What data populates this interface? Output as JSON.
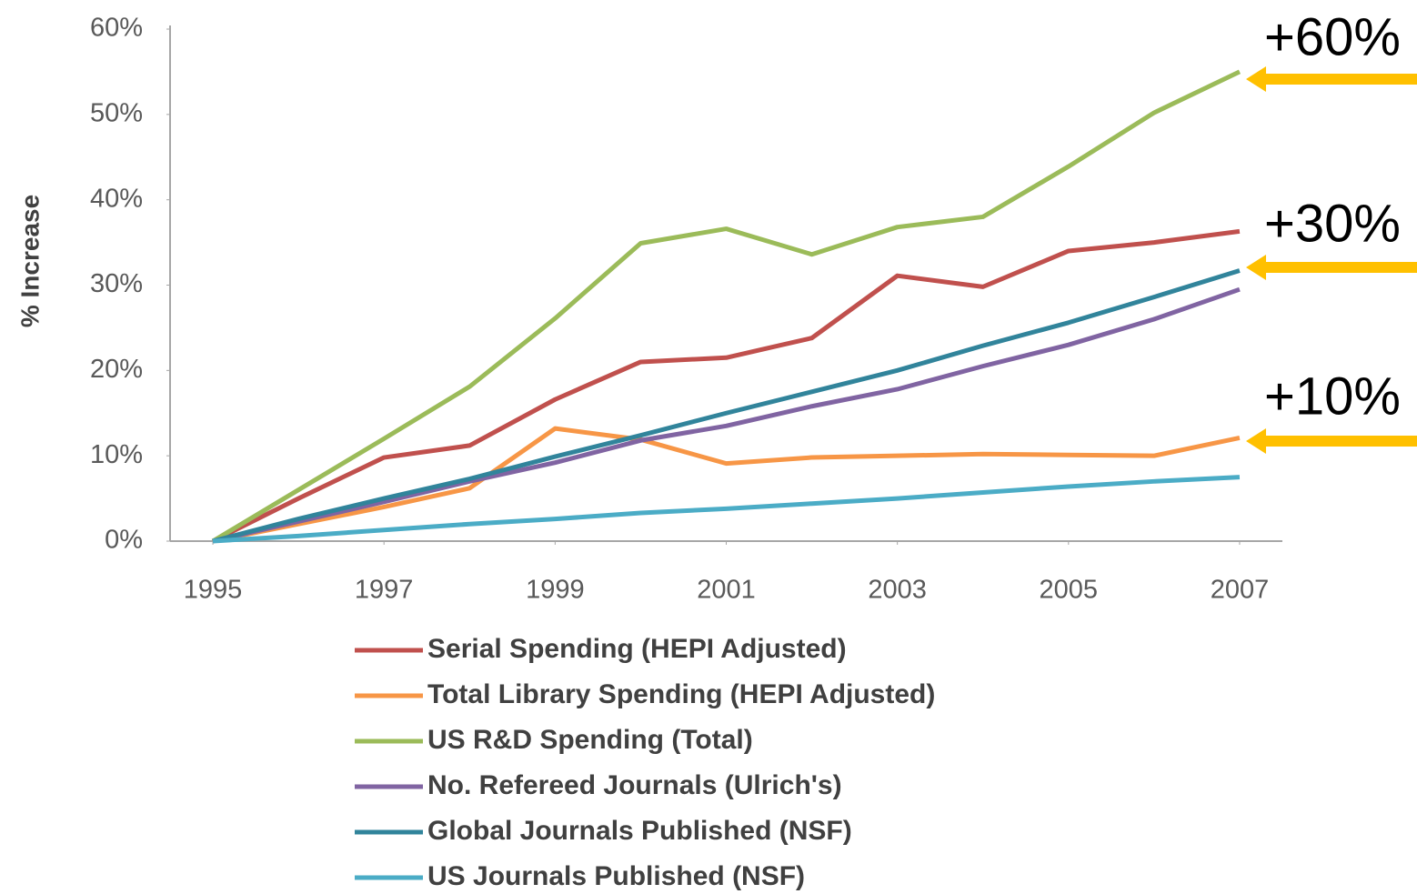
{
  "chart_data": {
    "type": "line",
    "y_label": "% Increase",
    "x": [
      1995,
      1996,
      1997,
      1998,
      1999,
      2000,
      2001,
      2002,
      2003,
      2004,
      2005,
      2006,
      2007
    ],
    "xlim": [
      1994.5,
      2007.5
    ],
    "xticks": [
      1995,
      1997,
      1999,
      2001,
      2003,
      2005,
      2007
    ],
    "ylim": [
      0,
      60
    ],
    "yticks": [
      {
        "value": 0,
        "label": "0%"
      },
      {
        "value": 10,
        "label": "10%"
      },
      {
        "value": 20,
        "label": "20%"
      },
      {
        "value": 30,
        "label": "30%"
      },
      {
        "value": 40,
        "label": "40%"
      },
      {
        "value": 50,
        "label": "50%"
      },
      {
        "value": 60,
        "label": "60%"
      }
    ],
    "grid": false,
    "legend": "bottom",
    "series": [
      {
        "name": "Serial Spending (HEPI Adjusted)",
        "color": "#c0504d",
        "values": [
          0,
          5,
          9.8,
          11.2,
          16.6,
          21,
          21.5,
          23.8,
          31.1,
          29.8,
          34,
          35,
          36.3
        ]
      },
      {
        "name": "Total Library Spending (HEPI Adjusted)",
        "color": "#f79646",
        "values": [
          0,
          2,
          4,
          6.2,
          13.2,
          11.9,
          9.1,
          9.8,
          10,
          10.2,
          10.1,
          10,
          12.1
        ]
      },
      {
        "name": "US R&D Spending (Total)",
        "color": "#9bbb59",
        "values": [
          0,
          6,
          12,
          18.1,
          26.1,
          34.9,
          36.6,
          33.6,
          36.8,
          38,
          43.9,
          50.2,
          55
        ]
      },
      {
        "name": "No. Refereed Journals (Ulrich's)",
        "color": "#8064a2",
        "values": [
          0,
          2.3,
          4.6,
          7,
          9.2,
          11.8,
          13.5,
          15.8,
          17.8,
          20.5,
          23,
          26,
          29.5
        ]
      },
      {
        "name": "Global Journals Published (NSF)",
        "color": "#31849b",
        "values": [
          0,
          2.6,
          5,
          7.3,
          9.9,
          12.4,
          15,
          17.5,
          20,
          22.9,
          25.6,
          28.6,
          31.7
        ]
      },
      {
        "name": "US Journals Published (NSF)",
        "color": "#4bacc6",
        "values": [
          0,
          0.6,
          1.3,
          2,
          2.6,
          3.3,
          3.8,
          4.4,
          5,
          5.7,
          6.4,
          7,
          7.5
        ]
      }
    ],
    "annotations": [
      "+60%",
      "+30%",
      "+10%"
    ],
    "annotation_color": "#ffc000"
  }
}
